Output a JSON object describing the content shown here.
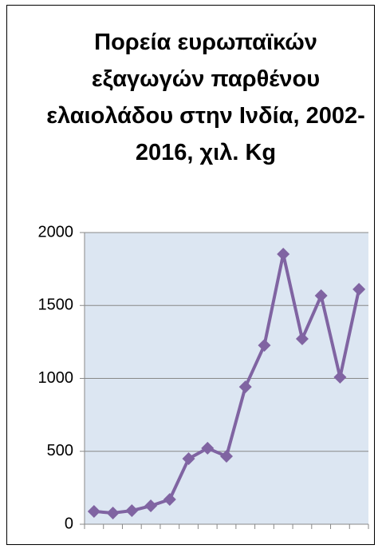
{
  "chart_data": {
    "type": "line",
    "title": "Πορεία ευρωπαϊκών εξαγωγών παρθένου ελαιολάδου στην Ινδία, 2002-2016, χιλ. Kg",
    "categories": [
      null,
      null,
      null,
      null,
      null,
      null,
      null,
      null,
      null,
      null,
      null,
      null,
      null,
      null,
      null
    ],
    "series": [
      {
        "name": null,
        "color": "#8064a2",
        "values": [
          88,
          77,
          93,
          126,
          170,
          449,
          521,
          466,
          942,
          1227,
          1852,
          1271,
          1567,
          1008,
          1611
        ]
      }
    ],
    "ylim": [
      0,
      2000
    ],
    "yticks": [
      0,
      500,
      1000,
      1500,
      2000
    ],
    "grid": true
  }
}
